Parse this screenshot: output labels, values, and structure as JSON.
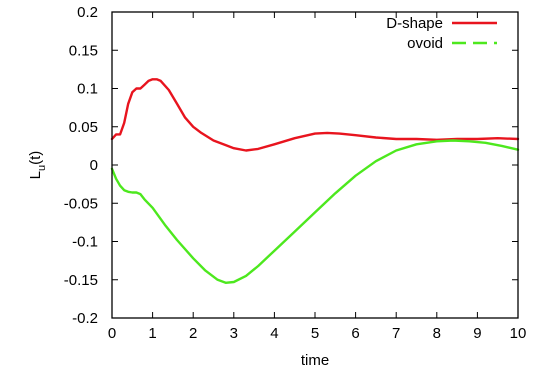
{
  "chart_data": {
    "type": "line",
    "xlabel": "time",
    "ylabel_main": "L",
    "ylabel_sub": "u",
    "ylabel_suffix": "(t)",
    "xlim": [
      0,
      10
    ],
    "ylim": [
      -0.2,
      0.2
    ],
    "xticks": [
      "0",
      "1",
      "2",
      "3",
      "4",
      "5",
      "6",
      "7",
      "8",
      "9",
      "10"
    ],
    "yticks": [
      "-0.2",
      "-0.15",
      "-0.1",
      "-0.05",
      "0",
      "0.05",
      "0.1",
      "0.15",
      "0.2"
    ],
    "grid": false,
    "legend_position": "top-right",
    "series": [
      {
        "name": "D-shape",
        "color": "#e8141e",
        "dash": "solid",
        "points": [
          [
            0,
            0.034
          ],
          [
            0.1,
            0.04
          ],
          [
            0.2,
            0.04
          ],
          [
            0.3,
            0.055
          ],
          [
            0.4,
            0.08
          ],
          [
            0.5,
            0.095
          ],
          [
            0.6,
            0.1
          ],
          [
            0.7,
            0.1
          ],
          [
            0.8,
            0.105
          ],
          [
            0.9,
            0.11
          ],
          [
            1.0,
            0.112
          ],
          [
            1.1,
            0.112
          ],
          [
            1.2,
            0.11
          ],
          [
            1.4,
            0.098
          ],
          [
            1.6,
            0.08
          ],
          [
            1.8,
            0.062
          ],
          [
            2.0,
            0.05
          ],
          [
            2.2,
            0.042
          ],
          [
            2.5,
            0.032
          ],
          [
            2.8,
            0.026
          ],
          [
            3.0,
            0.022
          ],
          [
            3.3,
            0.019
          ],
          [
            3.6,
            0.021
          ],
          [
            4.0,
            0.027
          ],
          [
            4.5,
            0.035
          ],
          [
            5.0,
            0.041
          ],
          [
            5.3,
            0.042
          ],
          [
            5.6,
            0.041
          ],
          [
            6.0,
            0.039
          ],
          [
            6.5,
            0.036
          ],
          [
            7.0,
            0.034
          ],
          [
            7.5,
            0.034
          ],
          [
            8.0,
            0.033
          ],
          [
            8.5,
            0.034
          ],
          [
            9.0,
            0.034
          ],
          [
            9.5,
            0.035
          ],
          [
            10.0,
            0.034
          ]
        ]
      },
      {
        "name": "ovoid",
        "color": "#4de81e",
        "dash": "dashed",
        "points": [
          [
            0,
            -0.005
          ],
          [
            0.1,
            -0.018
          ],
          [
            0.2,
            -0.027
          ],
          [
            0.3,
            -0.033
          ],
          [
            0.4,
            -0.035
          ],
          [
            0.5,
            -0.036
          ],
          [
            0.6,
            -0.036
          ],
          [
            0.7,
            -0.038
          ],
          [
            0.8,
            -0.045
          ],
          [
            1.0,
            -0.056
          ],
          [
            1.3,
            -0.078
          ],
          [
            1.6,
            -0.098
          ],
          [
            2.0,
            -0.122
          ],
          [
            2.3,
            -0.138
          ],
          [
            2.6,
            -0.15
          ],
          [
            2.8,
            -0.154
          ],
          [
            3.0,
            -0.153
          ],
          [
            3.3,
            -0.145
          ],
          [
            3.6,
            -0.132
          ],
          [
            4.0,
            -0.112
          ],
          [
            4.5,
            -0.087
          ],
          [
            5.0,
            -0.062
          ],
          [
            5.5,
            -0.037
          ],
          [
            6.0,
            -0.014
          ],
          [
            6.5,
            0.005
          ],
          [
            7.0,
            0.019
          ],
          [
            7.5,
            0.027
          ],
          [
            8.0,
            0.031
          ],
          [
            8.4,
            0.032
          ],
          [
            8.8,
            0.031
          ],
          [
            9.2,
            0.029
          ],
          [
            9.6,
            0.025
          ],
          [
            10.0,
            0.02
          ]
        ]
      }
    ]
  }
}
